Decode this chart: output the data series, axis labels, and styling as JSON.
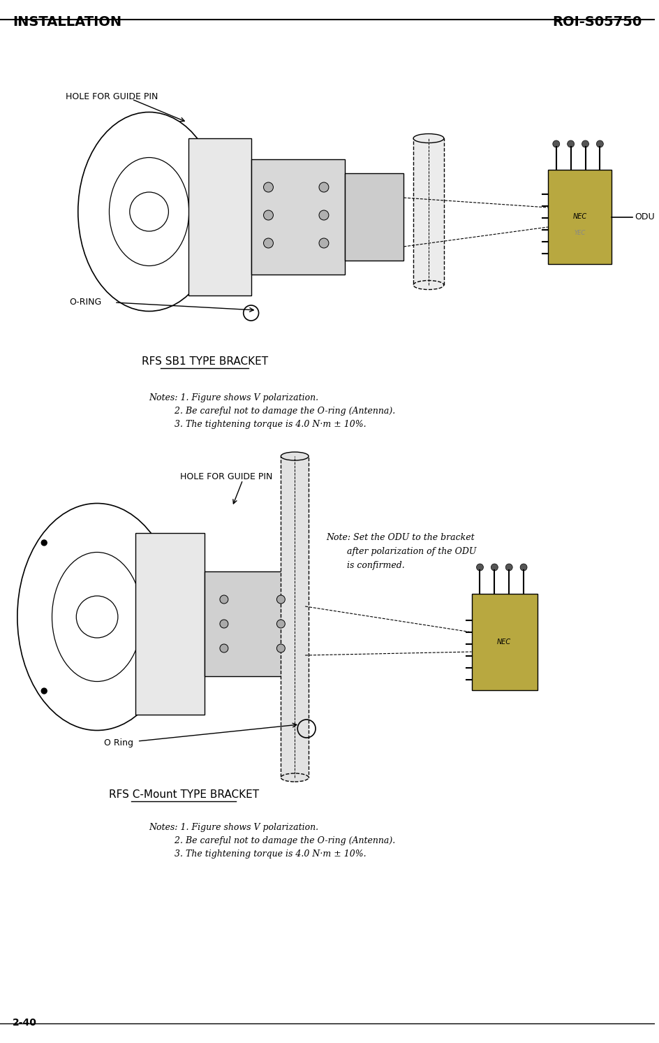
{
  "title_left": "INSTALLATION",
  "title_right": "ROI-S05750",
  "page_num": "2-40",
  "bg_color": "#ffffff",
  "top_diagram_label": "RFS SB1 TYPE BRACKET",
  "top_hole_label": "HOLE FOR GUIDE PIN",
  "top_oring_label": "O-RING",
  "top_odu_label": "ODU",
  "notes_top": [
    "Notes: 1. Figure shows V polarization.",
    "         2. Be careful not to damage the O-ring (Antenna).",
    "         3. The tightening torque is 4.0 N·m ± 10%."
  ],
  "bottom_diagram_label": "RFS C-Mount TYPE BRACKET",
  "bottom_hole_label": "HOLE FOR GUIDE PIN",
  "bottom_oring_label": "O Ring",
  "bottom_note_line1": "Note: Set the ODU to the bracket",
  "bottom_note_line2": "after polarization of the ODU",
  "bottom_note_line3": "is confirmed.",
  "notes_bottom": [
    "Notes: 1. Figure shows V polarization.",
    "         2. Be careful not to damage the O-ring (Antenna).",
    "         3. The tightening torque is 4.0 N·m ± 10%."
  ],
  "header_font_size": 14,
  "label_font_size": 9,
  "note_font_size": 9,
  "caption_font_size": 11,
  "page_font_size": 10
}
